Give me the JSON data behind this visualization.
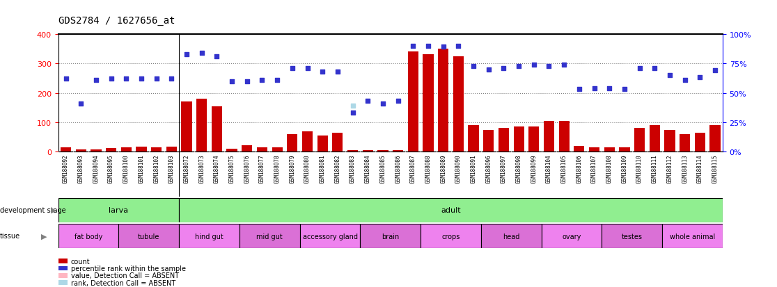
{
  "title": "GDS2784 / 1627656_at",
  "samples": [
    "GSM188092",
    "GSM188093",
    "GSM188094",
    "GSM188095",
    "GSM188100",
    "GSM188101",
    "GSM188102",
    "GSM188103",
    "GSM188072",
    "GSM188073",
    "GSM188074",
    "GSM188075",
    "GSM188076",
    "GSM188077",
    "GSM188078",
    "GSM188079",
    "GSM188080",
    "GSM188081",
    "GSM188082",
    "GSM188083",
    "GSM188084",
    "GSM188085",
    "GSM188086",
    "GSM188087",
    "GSM188088",
    "GSM188089",
    "GSM188090",
    "GSM188091",
    "GSM188096",
    "GSM188097",
    "GSM188098",
    "GSM188099",
    "GSM188104",
    "GSM188105",
    "GSM188106",
    "GSM188107",
    "GSM188108",
    "GSM188109",
    "GSM188110",
    "GSM188111",
    "GSM188112",
    "GSM188113",
    "GSM188114",
    "GSM188115"
  ],
  "counts": [
    14,
    8,
    8,
    12,
    14,
    18,
    16,
    18,
    170,
    180,
    155,
    10,
    22,
    15,
    15,
    60,
    70,
    55,
    65,
    5,
    5,
    5,
    5,
    340,
    330,
    350,
    325,
    90,
    75,
    80,
    85,
    85,
    105,
    105,
    20,
    15,
    15,
    15,
    80,
    90,
    75,
    60,
    65,
    90
  ],
  "percentile_ranks": [
    62,
    41,
    61,
    62,
    62,
    62,
    62,
    62,
    83,
    84,
    81,
    60,
    60,
    61,
    61,
    71,
    71,
    68,
    68,
    33,
    43,
    41,
    43,
    90,
    90,
    89,
    90,
    73,
    70,
    71,
    73,
    74,
    73,
    74,
    53,
    54,
    54,
    53,
    71,
    71,
    65,
    61,
    63,
    69
  ],
  "ranks_absent": [
    null,
    null,
    null,
    null,
    null,
    null,
    null,
    null,
    null,
    null,
    null,
    null,
    null,
    null,
    null,
    null,
    null,
    null,
    null,
    39,
    null,
    null,
    null,
    null,
    null,
    null,
    null,
    null,
    null,
    null,
    null,
    null,
    null,
    null,
    null,
    null,
    null,
    null,
    null,
    null,
    null,
    null,
    null,
    null
  ],
  "values_absent": [
    null,
    null,
    null,
    null,
    null,
    null,
    null,
    null,
    null,
    null,
    null,
    null,
    null,
    null,
    null,
    null,
    null,
    null,
    null,
    null,
    null,
    null,
    null,
    null,
    null,
    null,
    null,
    null,
    null,
    null,
    null,
    null,
    null,
    null,
    null,
    null,
    null,
    null,
    null,
    null,
    null,
    null,
    null,
    null
  ],
  "dev_stage_groups": [
    {
      "label": "larva",
      "start": 0,
      "end": 8,
      "color": "#90EE90"
    },
    {
      "label": "adult",
      "start": 8,
      "end": 44,
      "color": "#90EE90"
    }
  ],
  "tissue_groups": [
    {
      "label": "fat body",
      "start": 0,
      "end": 4,
      "color": "#EE82EE"
    },
    {
      "label": "tubule",
      "start": 4,
      "end": 8,
      "color": "#DA70D6"
    },
    {
      "label": "hind gut",
      "start": 8,
      "end": 12,
      "color": "#EE82EE"
    },
    {
      "label": "mid gut",
      "start": 12,
      "end": 16,
      "color": "#DA70D6"
    },
    {
      "label": "accessory gland",
      "start": 16,
      "end": 20,
      "color": "#EE82EE"
    },
    {
      "label": "brain",
      "start": 20,
      "end": 24,
      "color": "#DA70D6"
    },
    {
      "label": "crops",
      "start": 24,
      "end": 28,
      "color": "#EE82EE"
    },
    {
      "label": "head",
      "start": 28,
      "end": 32,
      "color": "#DA70D6"
    },
    {
      "label": "ovary",
      "start": 32,
      "end": 36,
      "color": "#EE82EE"
    },
    {
      "label": "testes",
      "start": 36,
      "end": 40,
      "color": "#DA70D6"
    },
    {
      "label": "whole animal",
      "start": 40,
      "end": 44,
      "color": "#EE82EE"
    }
  ],
  "ylim_left": [
    0,
    400
  ],
  "ylim_right": [
    0,
    100
  ],
  "yticks_left": [
    0,
    100,
    200,
    300,
    400
  ],
  "yticks_right": [
    0,
    25,
    50,
    75,
    100
  ],
  "bar_color": "#CC0000",
  "dot_color": "#3333CC",
  "absent_bar_color": "#FFB6C1",
  "absent_dot_color": "#ADD8E6",
  "bg_color": "#FFFFFF",
  "xticklabel_bg": "#D3D3D3",
  "dev_border_color": "#006400",
  "tissue_border_color": "#800080"
}
